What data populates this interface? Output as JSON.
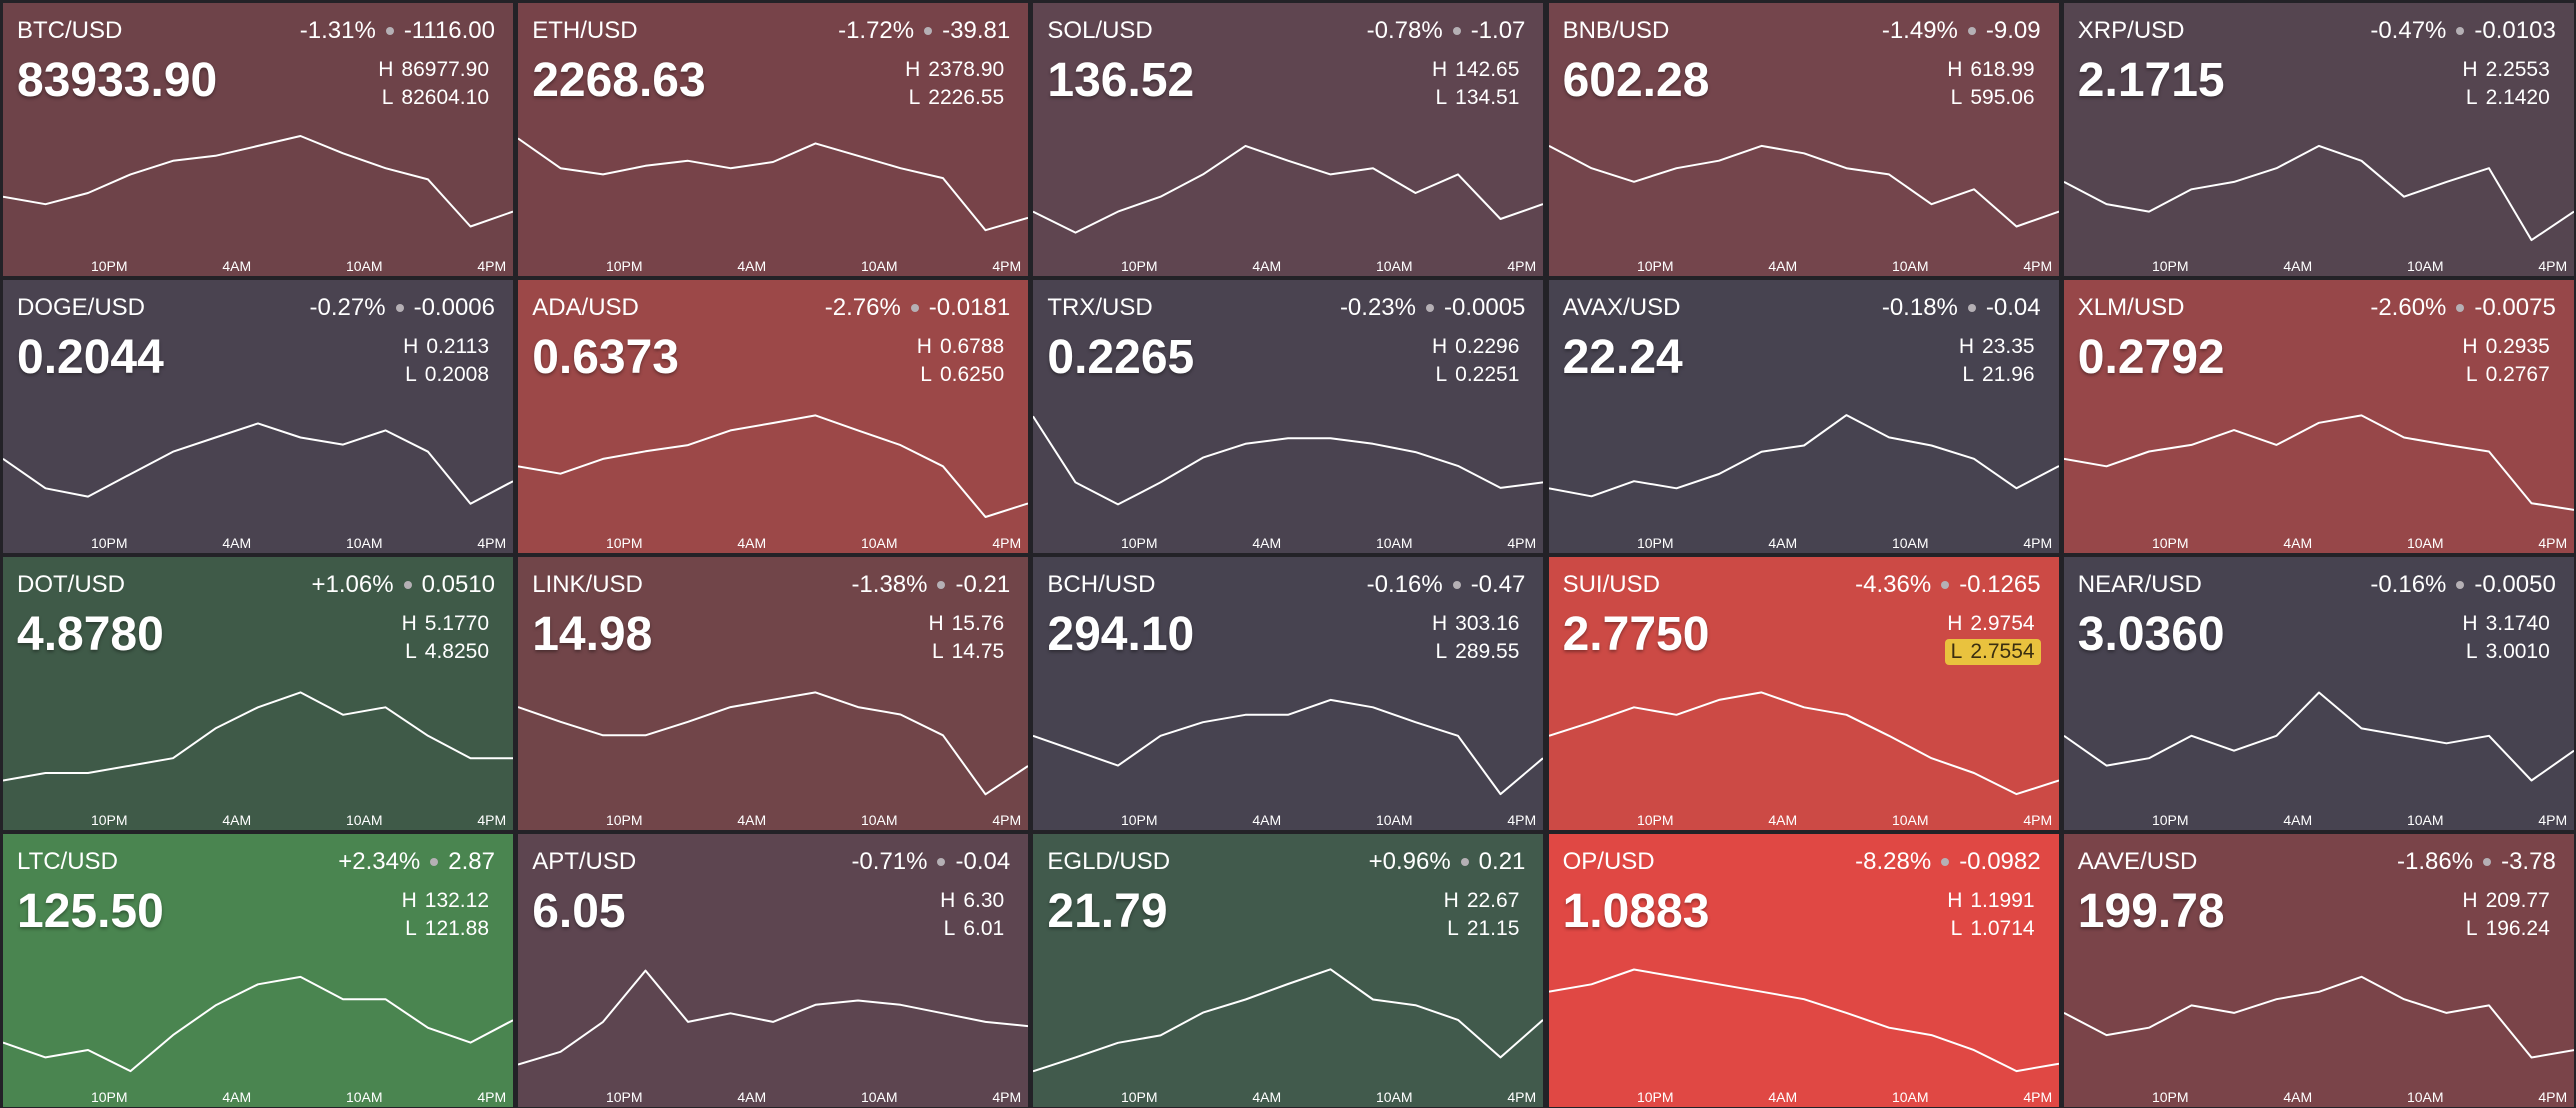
{
  "labels": {
    "high": "H",
    "low": "L"
  },
  "x_axis": {
    "xlim": [
      0,
      12
    ],
    "ticks": [
      {
        "value": 2.5,
        "label": "10PM"
      },
      {
        "value": 5.5,
        "label": "4AM"
      },
      {
        "value": 8.5,
        "label": "10AM"
      },
      {
        "value": 11.5,
        "label": "4PM"
      }
    ]
  },
  "tiles": [
    {
      "pair": "BTC/USD",
      "change_pct": "-1.31%",
      "change": "-1116.00",
      "price": "83933.90",
      "high": "86977.90",
      "low": "82604.10",
      "color": "#6e4349",
      "spark": [
        84660,
        84397,
        84791,
        85447,
        85928,
        86103,
        86453,
        86803,
        86191,
        85666,
        85272,
        83610,
        84135
      ]
    },
    {
      "pair": "ETH/USD",
      "change_pct": "-1.72%",
      "change": "-39.81",
      "price": "2268.63",
      "high": "2378.90",
      "low": "2226.55",
      "color": "#774349",
      "spark": [
        2369.8,
        2333.2,
        2325.6,
        2336.2,
        2342.3,
        2333.2,
        2340.8,
        2363.7,
        2348.4,
        2333.2,
        2321.0,
        2257.0,
        2272.3
      ]
    },
    {
      "pair": "SOL/USD",
      "change_pct": "-0.78%",
      "change": "-1.07",
      "price": "136.52",
      "high": "142.65",
      "low": "134.51",
      "color": "#5f4550",
      "spark": [
        137.36,
        135.98,
        137.36,
        138.34,
        139.8,
        141.67,
        140.7,
        139.8,
        140.21,
        138.58,
        139.8,
        136.87,
        137.85
      ]
    },
    {
      "pair": "BNB/USD",
      "change_pct": "-1.49%",
      "change": "-9.09",
      "price": "602.28",
      "high": "618.99",
      "low": "595.06",
      "color": "#74454c",
      "spark": [
        616.12,
        611.81,
        609.18,
        611.81,
        613.25,
        616.12,
        614.68,
        611.81,
        610.61,
        604.87,
        607.74,
        600.56,
        603.44
      ]
    },
    {
      "pair": "XRP/USD",
      "change_pct": "-0.47%",
      "change": "-0.0103",
      "price": "2.1715",
      "high": "2.2553",
      "low": "2.1420",
      "color": "#554550",
      "spark": [
        2.2088,
        2.1885,
        2.1817,
        2.202,
        2.2088,
        2.2213,
        2.2417,
        2.2281,
        2.1953,
        2.2088,
        2.2213,
        2.1556,
        2.1817
      ]
    },
    {
      "pair": "DOGE/USD",
      "change_pct": "-0.27%",
      "change": "-0.0006",
      "price": "0.2044",
      "high": "0.2113",
      "low": "0.2008",
      "color": "#4a4350",
      "spark": [
        0.207,
        0.2045,
        0.2038,
        0.2057,
        0.2076,
        0.2088,
        0.21,
        0.2088,
        0.2082,
        0.2094,
        0.2076,
        0.2032,
        0.2051
      ]
    },
    {
      "pair": "ADA/USD",
      "change_pct": "-2.76%",
      "change": "-0.0181",
      "price": "0.6373",
      "high": "0.6788",
      "low": "0.6250",
      "color": "#9c4848",
      "spark": [
        0.6535,
        0.6503,
        0.6567,
        0.66,
        0.6627,
        0.6691,
        0.6723,
        0.6756,
        0.6691,
        0.6627,
        0.6535,
        0.6315,
        0.6374
      ]
    },
    {
      "pair": "TRX/USD",
      "change_pct": "-0.23%",
      "change": "-0.0005",
      "price": "0.2265",
      "high": "0.2296",
      "low": "0.2251",
      "color": "#4a4350",
      "spark": [
        0.2293,
        0.2269,
        0.2261,
        0.2269,
        0.2278,
        0.2283,
        0.2285,
        0.2285,
        0.2283,
        0.228,
        0.2275,
        0.2267,
        0.2269
      ]
    },
    {
      "pair": "AVAX/USD",
      "change_pct": "-0.18%",
      "change": "-0.04",
      "price": "22.24",
      "high": "23.35",
      "low": "21.96",
      "color": "#474350",
      "spark": [
        22.45,
        22.36,
        22.53,
        22.45,
        22.61,
        22.86,
        22.93,
        23.27,
        23.02,
        22.93,
        22.78,
        22.45,
        22.7
      ]
    },
    {
      "pair": "XLM/USD",
      "change_pct": "-2.60%",
      "change": "-0.0075",
      "price": "0.2792",
      "high": "0.2935",
      "low": "0.2767",
      "color": "#974749",
      "spark": [
        0.2866,
        0.2856,
        0.2876,
        0.2885,
        0.2905,
        0.2885,
        0.2915,
        0.2925,
        0.2895,
        0.2885,
        0.2876,
        0.2806,
        0.2797
      ]
    },
    {
      "pair": "DOT/USD",
      "change_pct": "+1.06%",
      "change": "0.0510",
      "price": "4.8780",
      "high": "5.1770",
      "low": "4.8250",
      "color": "#3f5a48",
      "spark": [
        4.906,
        4.9271,
        4.9271,
        4.9482,
        4.9693,
        5.0538,
        5.1136,
        5.1559,
        5.0925,
        5.1136,
        5.0327,
        4.9693,
        4.9693
      ]
    },
    {
      "pair": "LINK/USD",
      "change_pct": "-1.38%",
      "change": "-0.21",
      "price": "14.98",
      "high": "15.76",
      "low": "14.75",
      "color": "#714549",
      "spark": [
        15.58,
        15.46,
        15.35,
        15.35,
        15.46,
        15.58,
        15.64,
        15.7,
        15.58,
        15.52,
        15.35,
        14.87,
        15.1
      ]
    },
    {
      "pair": "BCH/USD",
      "change_pct": "-0.16%",
      "change": "-0.47",
      "price": "294.10",
      "high": "303.16",
      "low": "289.55",
      "color": "#474350",
      "spark": [
        297.58,
        295.95,
        294.31,
        297.58,
        299.08,
        299.89,
        299.89,
        301.53,
        300.71,
        299.08,
        297.58,
        291.18,
        295.13
      ]
    },
    {
      "pair": "SUI/USD",
      "change_pct": "-4.36%",
      "change": "-0.1265",
      "price": "2.7750",
      "high": "2.9754",
      "low": "2.7554",
      "color": "#cc4a45",
      "highlight": "low",
      "spark": [
        2.8852,
        2.9094,
        2.9358,
        2.9226,
        2.949,
        2.9622,
        2.9358,
        2.9226,
        2.8852,
        2.8456,
        2.8192,
        2.7818,
        2.806
      ]
    },
    {
      "pair": "NEAR/USD",
      "change_pct": "-0.16%",
      "change": "-0.0050",
      "price": "3.0360",
      "high": "3.1740",
      "low": "3.0010",
      "color": "#474350",
      "spark": [
        3.1031,
        3.0616,
        3.0719,
        3.1031,
        3.0823,
        3.1031,
        3.1636,
        3.1135,
        3.1031,
        3.0927,
        3.1031,
        3.0408,
        3.0823
      ]
    },
    {
      "pair": "LTC/USD",
      "change_pct": "+2.34%",
      "change": "2.87",
      "price": "125.50",
      "high": "132.12",
      "low": "121.88",
      "color": "#4a8550",
      "spark": [
        125.46,
        124.24,
        124.85,
        123.11,
        126.08,
        128.54,
        130.28,
        130.89,
        129.05,
        129.05,
        126.69,
        125.46,
        127.31
      ]
    },
    {
      "pair": "APT/USD",
      "change_pct": "-0.71%",
      "change": "-0.04",
      "price": "6.05",
      "high": "6.30",
      "low": "6.01",
      "color": "#5d4550",
      "spark": [
        6.06,
        6.09,
        6.16,
        6.28,
        6.16,
        6.18,
        6.16,
        6.2,
        6.21,
        6.2,
        6.18,
        6.16,
        6.15
      ]
    },
    {
      "pair": "EGLD/USD",
      "change_pct": "+0.96%",
      "change": "0.21",
      "price": "21.79",
      "high": "22.67",
      "low": "21.15",
      "color": "#415a4c",
      "spark": [
        21.33,
        21.5,
        21.68,
        21.77,
        22.05,
        22.21,
        22.4,
        22.58,
        22.21,
        22.14,
        21.96,
        21.5,
        21.96
      ]
    },
    {
      "pair": "OP/USD",
      "change_pct": "-8.28%",
      "change": "-0.0982",
      "price": "1.0883",
      "high": "1.1991",
      "low": "1.0714",
      "color": "#e04844",
      "spark": [
        1.1685,
        1.1761,
        1.1914,
        1.1838,
        1.1761,
        1.1685,
        1.1608,
        1.1467,
        1.1314,
        1.1238,
        1.1084,
        1.0867,
        1.0944
      ]
    },
    {
      "pair": "AAVE/USD",
      "change_pct": "-1.86%",
      "change": "-3.78",
      "price": "199.78",
      "high": "209.77",
      "low": "196.24",
      "color": "#7a4449",
      "spark": [
        204.22,
        201.79,
        202.6,
        205.03,
        204.22,
        205.71,
        206.52,
        208.15,
        205.71,
        204.22,
        205.03,
        199.35,
        200.16
      ]
    }
  ]
}
